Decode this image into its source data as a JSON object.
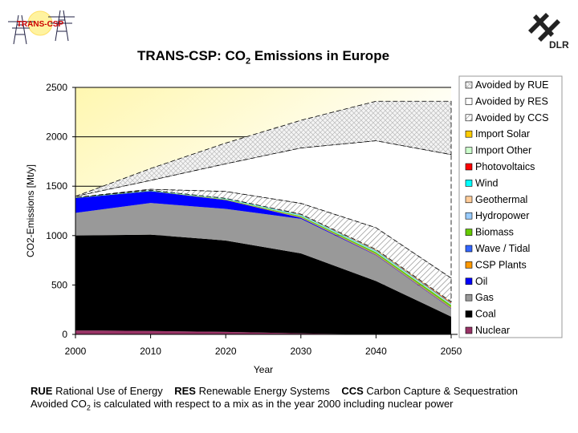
{
  "header": {
    "logo_left_text": "TRANS-CSP",
    "logo_right_text": "DLR",
    "title_prefix": "TRANS-CSP: CO",
    "title_sub": "2",
    "title_suffix": " Emissions in Europe"
  },
  "footnote": {
    "rue_abbr": "RUE",
    "rue_text": "Rational Use of Energy",
    "res_abbr": "RES",
    "res_text": "Renewable Energy Systems",
    "ccs_abbr": "CCS",
    "ccs_text": "Carbon Capture & Sequestration",
    "line2_prefix": "Avoided CO",
    "line2_sub": "2",
    "line2_suffix": " is calculated with respect to a mix as in the year 2000 including nuclear power"
  },
  "chart_data": {
    "type": "area",
    "stacked": true,
    "title": "",
    "xlabel": "Year",
    "ylabel": "CO2-Emissions [Mt/y]",
    "x": [
      2000,
      2010,
      2020,
      2030,
      2040,
      2050
    ],
    "xticks": [
      "2000",
      "2010",
      "2020",
      "2030",
      "2040",
      "2050"
    ],
    "yticks": [
      "0",
      "500",
      "1000",
      "1500",
      "2000",
      "2500"
    ],
    "ylim": [
      0,
      2500
    ],
    "grid": "horizontal major lines",
    "legend": "right",
    "series": [
      {
        "name": "Nuclear",
        "color": "#993366",
        "values": [
          40,
          35,
          25,
          10,
          0,
          0
        ]
      },
      {
        "name": "Coal",
        "color": "#000000",
        "values": [
          960,
          975,
          925,
          810,
          540,
          180
        ]
      },
      {
        "name": "Gas",
        "color": "#999999",
        "values": [
          230,
          320,
          320,
          350,
          260,
          80
        ]
      },
      {
        "name": "Oil",
        "color": "#0000ff",
        "values": [
          150,
          120,
          90,
          10,
          5,
          5
        ]
      },
      {
        "name": "CSP Plants",
        "color": "#ff9900",
        "values": [
          0,
          0,
          2,
          5,
          8,
          8
        ]
      },
      {
        "name": "Wave / Tidal",
        "color": "#3366ff",
        "values": [
          0,
          0,
          0,
          2,
          3,
          3
        ]
      },
      {
        "name": "Biomass",
        "color": "#66cc00",
        "values": [
          2,
          3,
          5,
          10,
          15,
          20
        ]
      },
      {
        "name": "Hydropower",
        "color": "#99ccff",
        "values": [
          3,
          3,
          3,
          5,
          5,
          5
        ]
      },
      {
        "name": "Geothermal",
        "color": "#ffcc99",
        "values": [
          0,
          0,
          1,
          2,
          3,
          5
        ]
      },
      {
        "name": "Wind",
        "color": "#00ffff",
        "values": [
          2,
          3,
          4,
          6,
          8,
          8
        ]
      },
      {
        "name": "Photovoltaics",
        "color": "#ff0000",
        "values": [
          0,
          0,
          1,
          3,
          5,
          8
        ]
      },
      {
        "name": "Import Other",
        "color": "#ccffcc",
        "values": [
          0,
          0,
          1,
          4,
          5,
          5
        ]
      },
      {
        "name": "Import Solar",
        "color": "#ffcc00",
        "values": [
          0,
          0,
          0,
          0,
          3,
          3
        ]
      },
      {
        "name": "Avoided by CCS",
        "color": "hatch-diagonal",
        "values": [
          0,
          10,
          70,
          110,
          220,
          240
        ]
      },
      {
        "name": "Avoided by RES",
        "color": "#ffffff",
        "values": [
          10,
          90,
          280,
          560,
          880,
          1250
        ]
      },
      {
        "name": "Avoided by RUE",
        "color": "hatch-diamond",
        "values": [
          0,
          120,
          210,
          280,
          400,
          540
        ]
      }
    ]
  }
}
